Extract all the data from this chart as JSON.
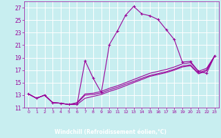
{
  "xlabel": "Windchill (Refroidissement éolien,°C)",
  "bg_color": "#c8eef0",
  "grid_color": "#ffffff",
  "line_color": "#990099",
  "label_bg_color": "#7b3f7b",
  "label_text_color": "#ffffff",
  "xlim": [
    -0.5,
    23.5
  ],
  "ylim": [
    11,
    28
  ],
  "xticks": [
    0,
    1,
    2,
    3,
    4,
    5,
    6,
    7,
    8,
    9,
    10,
    11,
    12,
    13,
    14,
    15,
    16,
    17,
    18,
    19,
    20,
    21,
    22,
    23
  ],
  "yticks": [
    11,
    13,
    15,
    17,
    19,
    21,
    23,
    25,
    27
  ],
  "series": [
    [
      13.2,
      12.5,
      13.0,
      11.8,
      11.7,
      11.5,
      11.5,
      18.5,
      15.7,
      13.4,
      21.1,
      23.3,
      25.8,
      27.2,
      26.0,
      25.7,
      25.1,
      23.5,
      21.9,
      18.3,
      18.4,
      16.8,
      16.5,
      19.3
    ],
    [
      13.2,
      12.5,
      13.0,
      11.8,
      11.7,
      11.5,
      11.8,
      13.2,
      13.3,
      13.6,
      14.1,
      14.5,
      15.0,
      15.5,
      16.0,
      16.5,
      16.8,
      17.1,
      17.5,
      18.0,
      18.2,
      16.8,
      17.3,
      19.3
    ],
    [
      13.2,
      12.5,
      13.0,
      11.8,
      11.7,
      11.5,
      11.7,
      13.0,
      13.1,
      13.35,
      13.85,
      14.25,
      14.75,
      15.2,
      15.7,
      16.15,
      16.45,
      16.75,
      17.15,
      17.65,
      17.85,
      16.55,
      17.05,
      19.3
    ],
    [
      13.2,
      12.5,
      13.0,
      11.8,
      11.7,
      11.5,
      11.5,
      12.5,
      12.8,
      13.1,
      13.6,
      14.0,
      14.5,
      15.0,
      15.5,
      16.0,
      16.3,
      16.6,
      17.0,
      17.5,
      17.7,
      16.4,
      16.9,
      19.3
    ]
  ]
}
